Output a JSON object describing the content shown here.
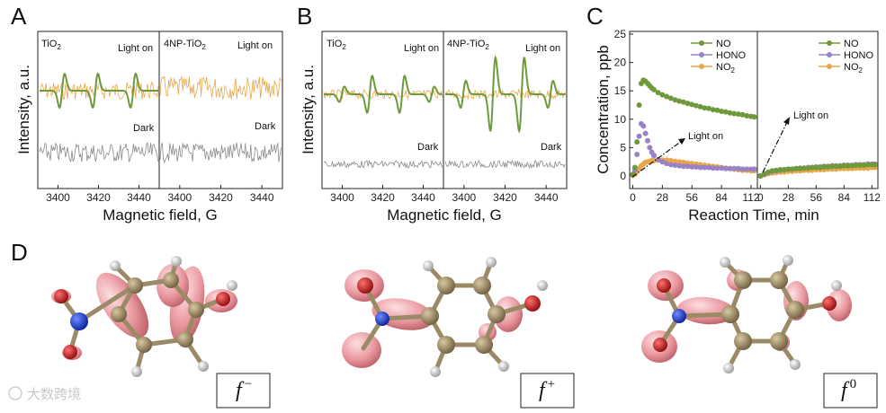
{
  "panel_labels": {
    "a": "A",
    "b": "B",
    "c": "C",
    "d": "D"
  },
  "colors": {
    "green": "#6f9a3c",
    "orange": "#e9a74a",
    "gray": "#8a8a8a",
    "purple": "#9a82c6",
    "carbon": "#9b8a66",
    "pink": "#e8969d",
    "nitrogen": "#1f3fd0",
    "oxygen": "#d41f1f"
  },
  "panelA": {
    "ylabel": "Intensity, a.u.",
    "xlabel": "Magnetic field, G",
    "left_ticks": [
      "3400",
      "3420",
      "3440"
    ],
    "right_ticks": [
      "3400",
      "3420",
      "3440"
    ],
    "left_title": "TiO",
    "left_title_sub": "2",
    "right_title": "4NP-TiO",
    "right_title_sub": "2",
    "light_left": "Light on",
    "light_right": "Light on",
    "dark_left": "Dark",
    "dark_right": "Dark"
  },
  "panelB": {
    "ylabel": "Intensity, a.u.",
    "xlabel": "Magnetic field, G",
    "left_ticks": [
      "3400",
      "3420",
      "3440"
    ],
    "right_ticks": [
      "3400",
      "3420",
      "3440"
    ],
    "left_title": "TiO",
    "left_title_sub": "2",
    "right_title": "4NP-TiO",
    "right_title_sub": "2",
    "light_left": "Light on",
    "light_right": "Light on",
    "dark_left": "Dark",
    "dark_right": "Dark"
  },
  "chart_data": {
    "type": "scatter",
    "title": "",
    "xlabel": "Reaction Time, min",
    "ylabel": "Concentration, ppb",
    "ylim": [
      0,
      25
    ],
    "yticks": [
      "0",
      "5",
      "10",
      "15",
      "20",
      "25"
    ],
    "left_xticks": [
      "0",
      "28",
      "56",
      "84",
      "112"
    ],
    "right_xticks": [
      "0",
      "28",
      "56",
      "84",
      "112"
    ],
    "left_xlim": [
      -3,
      118
    ],
    "right_xlim": [
      -3,
      118
    ],
    "annotation_left": "Light on",
    "annotation_right": "Light on",
    "legend_left": [
      {
        "name": "NO",
        "color": "#6f9a3c"
      },
      {
        "name": "HONO",
        "color": "#9a82c6"
      },
      {
        "name": "NO",
        "sub": "2",
        "color": "#e9a74a"
      }
    ],
    "legend_right": [
      {
        "name": "NO",
        "color": "#6f9a3c"
      },
      {
        "name": "HONO",
        "color": "#9a82c6"
      },
      {
        "name": "NO",
        "sub": "2",
        "color": "#e9a74a"
      }
    ],
    "left_series": [
      {
        "name": "NO",
        "color": "#6f9a3c",
        "x": [
          0,
          2,
          4,
          6,
          8,
          10,
          12,
          14,
          16,
          18,
          20,
          24,
          28,
          32,
          36,
          40,
          44,
          48,
          52,
          56,
          60,
          64,
          68,
          72,
          76,
          80,
          84,
          88,
          92,
          96,
          100,
          104,
          108,
          112,
          115
        ],
        "y": [
          0.3,
          1.5,
          6.0,
          12.5,
          16.3,
          16.9,
          16.7,
          16.3,
          15.9,
          15.5,
          15.2,
          14.7,
          14.3,
          14.0,
          13.7,
          13.4,
          13.2,
          13.0,
          12.8,
          12.6,
          12.4,
          12.2,
          12.0,
          11.9,
          11.7,
          11.6,
          11.4,
          11.3,
          11.1,
          11.0,
          10.9,
          10.8,
          10.6,
          10.5,
          10.4
        ]
      },
      {
        "name": "HONO",
        "color": "#9a82c6",
        "x": [
          0,
          2,
          4,
          6,
          8,
          10,
          12,
          14,
          16,
          18,
          20,
          24,
          28,
          32,
          36,
          40,
          44,
          48,
          52,
          56,
          60,
          64,
          68,
          72,
          76,
          80,
          84,
          88,
          92,
          96,
          100,
          104,
          108,
          112,
          115
        ],
        "y": [
          0.2,
          1.0,
          3.8,
          7.0,
          9.2,
          8.8,
          7.5,
          6.2,
          5.0,
          4.2,
          3.6,
          2.9,
          2.5,
          2.2,
          2.0,
          1.9,
          1.8,
          1.7,
          1.7,
          1.6,
          1.6,
          1.5,
          1.5,
          1.5,
          1.4,
          1.4,
          1.4,
          1.3,
          1.3,
          1.3,
          1.3,
          1.2,
          1.2,
          1.2,
          1.2
        ]
      },
      {
        "name": "NO2",
        "color": "#e9a74a",
        "x": [
          0,
          2,
          4,
          6,
          8,
          10,
          12,
          14,
          16,
          18,
          20,
          24,
          28,
          32,
          36,
          40,
          44,
          48,
          52,
          56,
          60,
          64,
          68,
          72,
          76,
          80,
          84,
          88,
          92,
          96,
          100,
          104,
          108,
          112,
          115
        ],
        "y": [
          0.1,
          0.3,
          0.8,
          1.3,
          1.8,
          2.1,
          2.4,
          2.5,
          2.6,
          2.7,
          2.7,
          2.8,
          2.8,
          2.8,
          2.7,
          2.6,
          2.5,
          2.4,
          2.3,
          2.2,
          2.1,
          2.0,
          1.9,
          1.8,
          1.7,
          1.6,
          1.5,
          1.4,
          1.3,
          1.2,
          1.1,
          1.0,
          1.0,
          0.9,
          0.9
        ]
      }
    ],
    "right_series": [
      {
        "name": "NO",
        "color": "#6f9a3c",
        "x": [
          0,
          4,
          8,
          12,
          16,
          20,
          24,
          28,
          32,
          36,
          40,
          44,
          48,
          52,
          56,
          60,
          64,
          68,
          72,
          76,
          80,
          84,
          88,
          92,
          96,
          100,
          104,
          108,
          112,
          115
        ],
        "y": [
          0.0,
          0.4,
          0.7,
          0.9,
          1.0,
          1.1,
          1.1,
          1.2,
          1.2,
          1.3,
          1.3,
          1.4,
          1.4,
          1.5,
          1.5,
          1.5,
          1.6,
          1.6,
          1.7,
          1.7,
          1.7,
          1.8,
          1.8,
          1.8,
          1.9,
          1.9,
          1.9,
          2.0,
          2.0,
          2.0
        ]
      },
      {
        "name": "HONO",
        "color": "#9a82c6",
        "x": [
          0,
          4,
          8,
          12,
          16,
          20,
          24,
          28,
          32,
          36,
          40,
          44,
          48,
          52,
          56,
          60,
          64,
          68,
          72,
          76,
          80,
          84,
          88,
          92,
          96,
          100,
          104,
          108,
          112,
          115
        ],
        "y": [
          0.0,
          0.3,
          0.6,
          0.8,
          0.9,
          1.0,
          1.1,
          1.2,
          1.2,
          1.3,
          1.4,
          1.4,
          1.5,
          1.5,
          1.6,
          1.6,
          1.7,
          1.7,
          1.8,
          1.8,
          1.8,
          1.9,
          1.9,
          1.9,
          2.0,
          2.0,
          2.0,
          2.1,
          2.1,
          2.1
        ]
      },
      {
        "name": "NO2",
        "color": "#e9a74a",
        "x": [
          0,
          4,
          8,
          12,
          16,
          20,
          24,
          28,
          32,
          36,
          40,
          44,
          48,
          52,
          56,
          60,
          64,
          68,
          72,
          76,
          80,
          84,
          88,
          92,
          96,
          100,
          104,
          108,
          112,
          115
        ],
        "y": [
          0.0,
          0.2,
          0.4,
          0.5,
          0.6,
          0.7,
          0.7,
          0.8,
          0.8,
          0.9,
          0.9,
          1.0,
          1.0,
          1.0,
          1.1,
          1.1,
          1.1,
          1.2,
          1.2,
          1.2,
          1.3,
          1.3,
          1.3,
          1.3,
          1.4,
          1.4,
          1.4,
          1.4,
          1.5,
          1.5
        ]
      }
    ]
  },
  "panelD": {
    "fukui_labels": [
      {
        "main": "f",
        "sup": "−"
      },
      {
        "main": "f",
        "sup": "+"
      },
      {
        "main": "f",
        "sup": "0"
      }
    ]
  },
  "watermark": "大数跨境"
}
